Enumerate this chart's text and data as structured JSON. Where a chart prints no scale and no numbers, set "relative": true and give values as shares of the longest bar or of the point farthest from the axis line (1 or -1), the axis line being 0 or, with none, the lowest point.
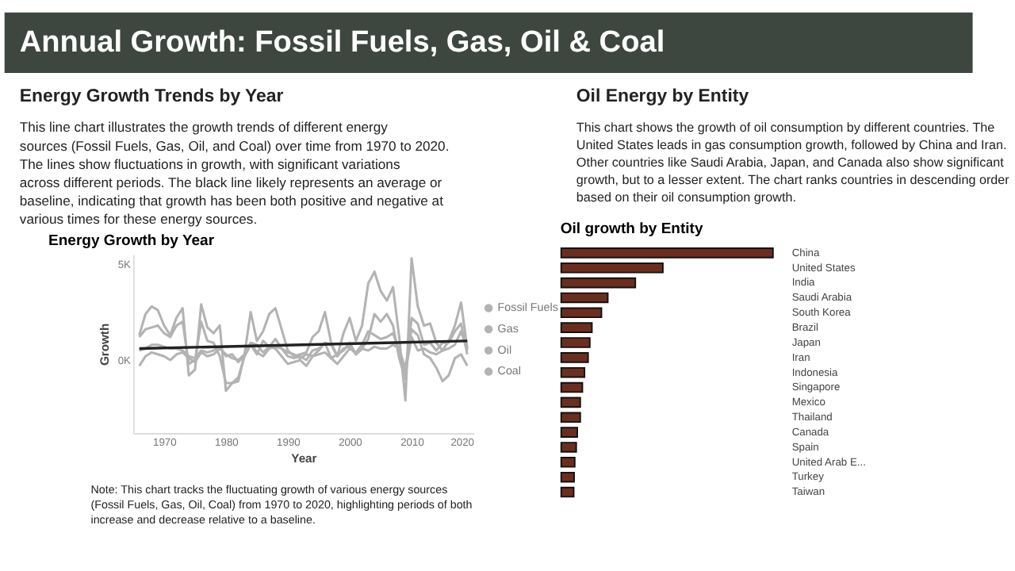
{
  "chart_data": [
    {
      "type": "other",
      "title": "Annual Growth: Fossil Fuels, Gas, Oil & Coal"
    },
    {
      "type": "other",
      "title": "Energy Growth Trends by Year",
      "annotations": [
        "This line chart illustrates the growth trends of different energy sources (Fossil Fuels, Gas, Oil, and Coal) over time from 1970 to 2020. The lines show fluctuations in growth, with significant variations across different periods. The black line likely represents an average or baseline, indicating that growth has been both positive and negative at various times for these energy sources."
      ]
    },
    {
      "type": "line",
      "title": "Energy Growth by Year",
      "xlabel": "Year",
      "ylabel": "Growth",
      "x": [
        1966,
        1967,
        1968,
        1969,
        1970,
        1971,
        1972,
        1973,
        1974,
        1975,
        1976,
        1977,
        1978,
        1979,
        1980,
        1981,
        1982,
        1983,
        1984,
        1985,
        1986,
        1987,
        1988,
        1989,
        1990,
        1991,
        1992,
        1993,
        1994,
        1995,
        1996,
        1997,
        1998,
        1999,
        2000,
        2001,
        2002,
        2003,
        2004,
        2005,
        2006,
        2007,
        2008,
        2009,
        2010,
        2011,
        2012,
        2013,
        2014,
        2015,
        2016,
        2017,
        2018,
        2019
      ],
      "xlim": [
        1965,
        2020
      ],
      "xticks": [
        1970,
        1980,
        1990,
        2000,
        2010,
        2020
      ],
      "ylim": [
        -3800,
        5500
      ],
      "yticks": [
        {
          "value": 0,
          "label": "0K"
        },
        {
          "value": 5000,
          "label": "5K"
        }
      ],
      "grid": false,
      "legend": "right",
      "marker": "none",
      "line_style": "solid",
      "series": [
        {
          "name": "Fossil Fuels",
          "color": "#b3b3b3",
          "values": [
            1300,
            2400,
            2800,
            2600,
            1800,
            1300,
            2200,
            2700,
            -800,
            -500,
            2900,
            1700,
            1400,
            1800,
            -1600,
            -1200,
            -1100,
            300,
            2500,
            1000,
            1500,
            2400,
            2700,
            1600,
            500,
            200,
            300,
            400,
            1200,
            1500,
            2500,
            900,
            200,
            1400,
            2200,
            1000,
            1800,
            4000,
            4600,
            3600,
            3100,
            3800,
            1200,
            -2100,
            5300,
            2800,
            1800,
            1900,
            900,
            500,
            1000,
            1800,
            3000,
            600
          ]
        },
        {
          "name": "Gas",
          "color": "#b3b3b3",
          "values": [
            500,
            600,
            800,
            800,
            700,
            600,
            600,
            500,
            200,
            100,
            500,
            400,
            500,
            700,
            200,
            300,
            -100,
            200,
            900,
            400,
            200,
            600,
            700,
            600,
            400,
            300,
            100,
            300,
            200,
            500,
            900,
            100,
            300,
            500,
            900,
            300,
            600,
            500,
            700,
            600,
            600,
            800,
            600,
            -600,
            1200,
            500,
            600,
            400,
            300,
            500,
            600,
            800,
            1500,
            500
          ]
        },
        {
          "name": "Oil",
          "color": "#b3b3b3",
          "values": [
            1200,
            1600,
            1700,
            1800,
            1400,
            1200,
            1800,
            2000,
            -200,
            0,
            2000,
            1000,
            900,
            200,
            -1200,
            -1200,
            -900,
            200,
            800,
            300,
            1000,
            700,
            1100,
            600,
            200,
            100,
            200,
            0,
            500,
            600,
            900,
            800,
            200,
            600,
            700,
            300,
            600,
            1100,
            2400,
            2000,
            2400,
            1800,
            100,
            -1000,
            2200,
            1900,
            800,
            900,
            500,
            900,
            900,
            1500,
            1900,
            300
          ]
        },
        {
          "name": "Coal",
          "color": "#b3b3b3",
          "values": [
            -300,
            200,
            400,
            300,
            200,
            0,
            300,
            400,
            100,
            -100,
            400,
            200,
            300,
            600,
            300,
            100,
            0,
            300,
            900,
            800,
            400,
            700,
            600,
            200,
            -200,
            -100,
            0,
            -300,
            200,
            300,
            400,
            100,
            -200,
            200,
            600,
            400,
            800,
            1500,
            1300,
            1100,
            1200,
            1400,
            500,
            -400,
            1600,
            1300,
            300,
            100,
            -400,
            -1100,
            -800,
            100,
            300,
            -300
          ]
        },
        {
          "type": "line",
          "color": "#222222",
          "x": [
            1966,
            2019
          ],
          "values": [
            600,
            1000
          ]
        }
      ],
      "annotations": [
        "Note: This chart tracks the fluctuating growth of various energy sources (Fossil Fuels, Gas, Oil, Coal) from 1970 to 2020, highlighting periods of both increase and decrease relative to a baseline."
      ]
    },
    {
      "type": "other",
      "title": "Oil Energy by Entity",
      "annotations": [
        "This chart shows the growth of oil consumption by different countries. The United States leads in gas consumption growth, followed by China and Iran. Other countries like Saudi Arabia, Japan, and Canada also show significant growth, but to a lesser extent. The chart ranks countries in descending order based on their oil consumption growth."
      ]
    },
    {
      "type": "bar",
      "orientation": "horizontal",
      "relative": true,
      "title": "Oil growth by Entity",
      "color": "#6b2e1e",
      "categories": [
        "China",
        "United States",
        "India",
        "Saudi Arabia",
        "South Korea",
        "Brazil",
        "Japan",
        "Iran",
        "Indonesia",
        "Singapore",
        "Mexico",
        "Thailand",
        "Canada",
        "Spain",
        "United Arab E...",
        "Turkey",
        "Taiwan"
      ],
      "values": [
        1,
        0.48,
        0.35,
        0.22,
        0.19,
        0.145,
        0.135,
        0.127,
        0.11,
        0.1,
        0.09,
        0.09,
        0.076,
        0.071,
        0.064,
        0.061,
        0.059
      ]
    }
  ]
}
